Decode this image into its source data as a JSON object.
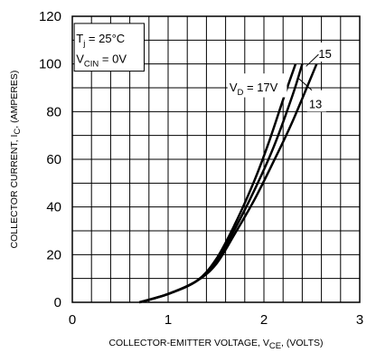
{
  "chart_data": {
    "type": "line",
    "xlabel": {
      "main": "COLLECTOR-EMITTER VOLTAGE, V",
      "sub": "CE",
      "tail": ", (VOLTS)"
    },
    "ylabel": {
      "main": "COLLECTOR CURRENT, I",
      "sub": "C",
      "tail": ", (AMPERES)"
    },
    "xlim": [
      0,
      3
    ],
    "ylim": [
      0,
      120
    ],
    "x_ticks": [
      "0",
      "1",
      "2",
      "3"
    ],
    "y_ticks": [
      "0",
      "20",
      "40",
      "60",
      "80",
      "100",
      "120"
    ],
    "grid": true,
    "conditions": [
      {
        "main": "T",
        "sub": "j",
        "tail": " = 25°C"
      },
      {
        "main": "V",
        "sub": "CIN",
        "tail": " = 0V"
      }
    ],
    "series": [
      {
        "name": "15",
        "x": [
          0.7,
          1.0,
          1.3,
          1.5,
          1.7,
          1.9,
          2.1,
          2.3,
          2.4
        ],
        "y": [
          0,
          3.5,
          9,
          17,
          31,
          47,
          65,
          87,
          100
        ]
      },
      {
        "name": "V_D = 17V",
        "x": [
          0.7,
          1.0,
          1.3,
          1.5,
          1.7,
          1.9,
          2.05,
          2.2,
          2.33
        ],
        "y": [
          0,
          3.5,
          9,
          18,
          33,
          51,
          67,
          85,
          100
        ]
      },
      {
        "name": "13",
        "x": [
          0.7,
          1.0,
          1.3,
          1.5,
          1.7,
          1.9,
          2.1,
          2.3,
          2.55
        ],
        "y": [
          0,
          3.5,
          9,
          16,
          29,
          43,
          59,
          76,
          100
        ]
      }
    ],
    "series_labels": {
      "s15": "15",
      "s17": {
        "main": "V",
        "sub": "D",
        "tail": " = 17V"
      },
      "s13": "13"
    }
  }
}
